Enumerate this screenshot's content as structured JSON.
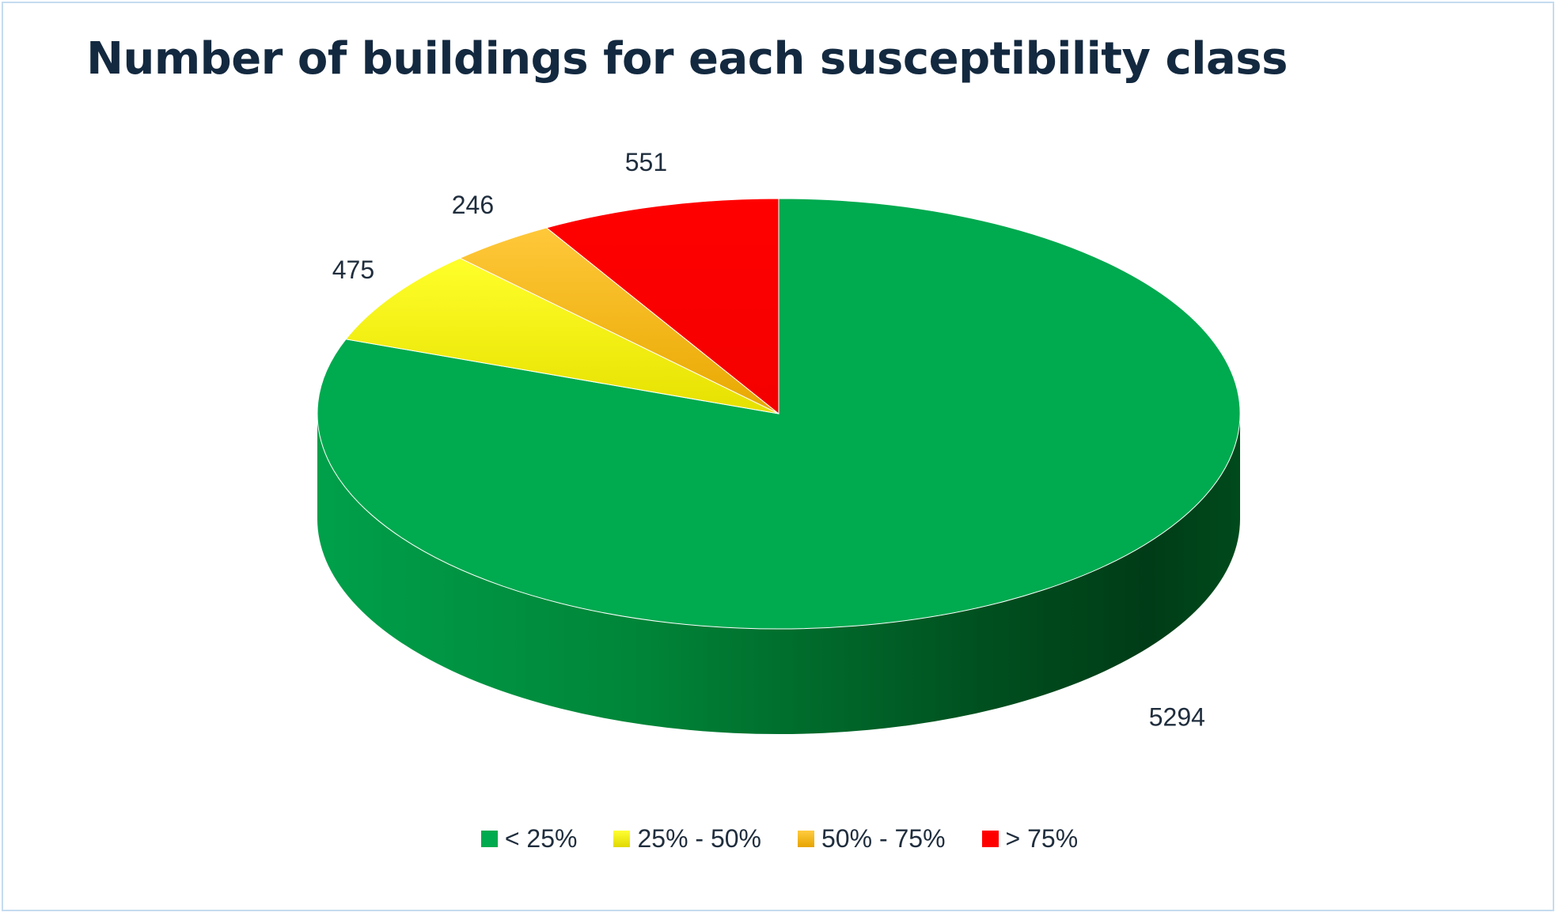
{
  "chart_data": {
    "type": "pie",
    "title": "Number of buildings for each susceptibility class",
    "categories": [
      "< 25%",
      "25% - 50%",
      "50% - 75%",
      "> 75%"
    ],
    "values": [
      5294,
      475,
      246,
      551
    ],
    "data_labels": [
      "5294",
      "475",
      "246",
      "551"
    ],
    "colors": [
      "#00aa4f",
      "#ffff00",
      "#ffc000",
      "#ff0000"
    ],
    "legend_position": "bottom",
    "style": "3d"
  }
}
